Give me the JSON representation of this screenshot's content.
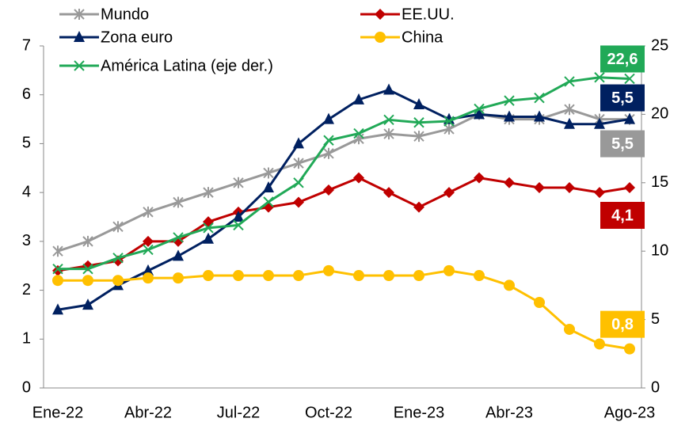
{
  "chart_data": {
    "type": "line",
    "categories": [
      "Ene-22",
      null,
      null,
      "Abr-22",
      null,
      null,
      "Jul-22",
      null,
      null,
      "Oct-22",
      null,
      null,
      "Ene-23",
      null,
      null,
      "Abr-23",
      null,
      null,
      null,
      "Ago-23"
    ],
    "series": [
      {
        "name": "Mundo",
        "color": "#999999",
        "marker": "star",
        "values": [
          2.8,
          3.0,
          3.3,
          3.6,
          3.8,
          4.0,
          4.2,
          4.4,
          4.6,
          4.8,
          5.1,
          5.2,
          5.15,
          5.3,
          5.6,
          5.5,
          5.5,
          5.7,
          5.5,
          5.5
        ],
        "value_labels": [
          null,
          null,
          null,
          null,
          null,
          null,
          null,
          null,
          null,
          null,
          null,
          null,
          null,
          null,
          null,
          null,
          null,
          null,
          null,
          "5,5"
        ]
      },
      {
        "name": "EE.UU.",
        "color": "#c00000",
        "marker": "diamond",
        "values": [
          2.4,
          2.5,
          2.6,
          3.0,
          3.0,
          3.4,
          3.6,
          3.7,
          3.8,
          4.05,
          4.3,
          4.0,
          3.7,
          4.0,
          4.3,
          4.2,
          4.1,
          4.1,
          4.0,
          4.1
        ],
        "value_labels": [
          null,
          null,
          null,
          null,
          null,
          null,
          null,
          null,
          null,
          null,
          null,
          null,
          null,
          null,
          null,
          null,
          null,
          null,
          null,
          "4,1"
        ]
      },
      {
        "name": "Zona euro",
        "color": "#002060",
        "marker": "triangle",
        "values": [
          1.6,
          1.7,
          2.1,
          2.4,
          2.7,
          3.05,
          3.5,
          4.1,
          5.0,
          5.5,
          5.9,
          6.1,
          5.8,
          5.5,
          5.6,
          5.55,
          5.55,
          5.4,
          5.4,
          5.5
        ],
        "value_labels": [
          null,
          null,
          null,
          null,
          null,
          null,
          null,
          null,
          null,
          null,
          null,
          null,
          null,
          null,
          null,
          null,
          null,
          null,
          null,
          "5,5"
        ]
      },
      {
        "name": "China",
        "color": "#ffc000",
        "marker": "circle",
        "values": [
          2.2,
          2.2,
          2.2,
          2.25,
          2.25,
          2.3,
          2.3,
          2.3,
          2.3,
          2.4,
          2.3,
          2.3,
          2.3,
          2.4,
          2.3,
          2.1,
          1.75,
          1.2,
          0.9,
          0.8
        ],
        "value_labels": [
          null,
          null,
          null,
          null,
          null,
          null,
          null,
          null,
          null,
          null,
          null,
          null,
          null,
          null,
          null,
          null,
          null,
          null,
          null,
          "0,8"
        ]
      },
      {
        "name": "América Latina (eje der.)",
        "color": "#21a957",
        "marker": "x",
        "axis": "y2",
        "values": [
          8.7,
          8.7,
          9.5,
          10.1,
          11.0,
          11.7,
          11.9,
          13.6,
          15.0,
          18.1,
          18.6,
          19.6,
          19.4,
          19.5,
          20.4,
          21.0,
          21.2,
          22.4,
          22.7,
          22.6
        ],
        "value_labels": [
          null,
          null,
          null,
          null,
          null,
          null,
          null,
          null,
          null,
          null,
          null,
          null,
          null,
          null,
          null,
          null,
          null,
          null,
          null,
          "22,6"
        ]
      }
    ],
    "ylim": [
      0,
      7
    ],
    "yticks": [
      0,
      1,
      2,
      3,
      4,
      5,
      6,
      7
    ],
    "y2lim": [
      0,
      25
    ],
    "y2ticks": [
      0,
      5,
      10,
      15,
      20,
      25
    ],
    "grid": false,
    "legend": "top"
  }
}
